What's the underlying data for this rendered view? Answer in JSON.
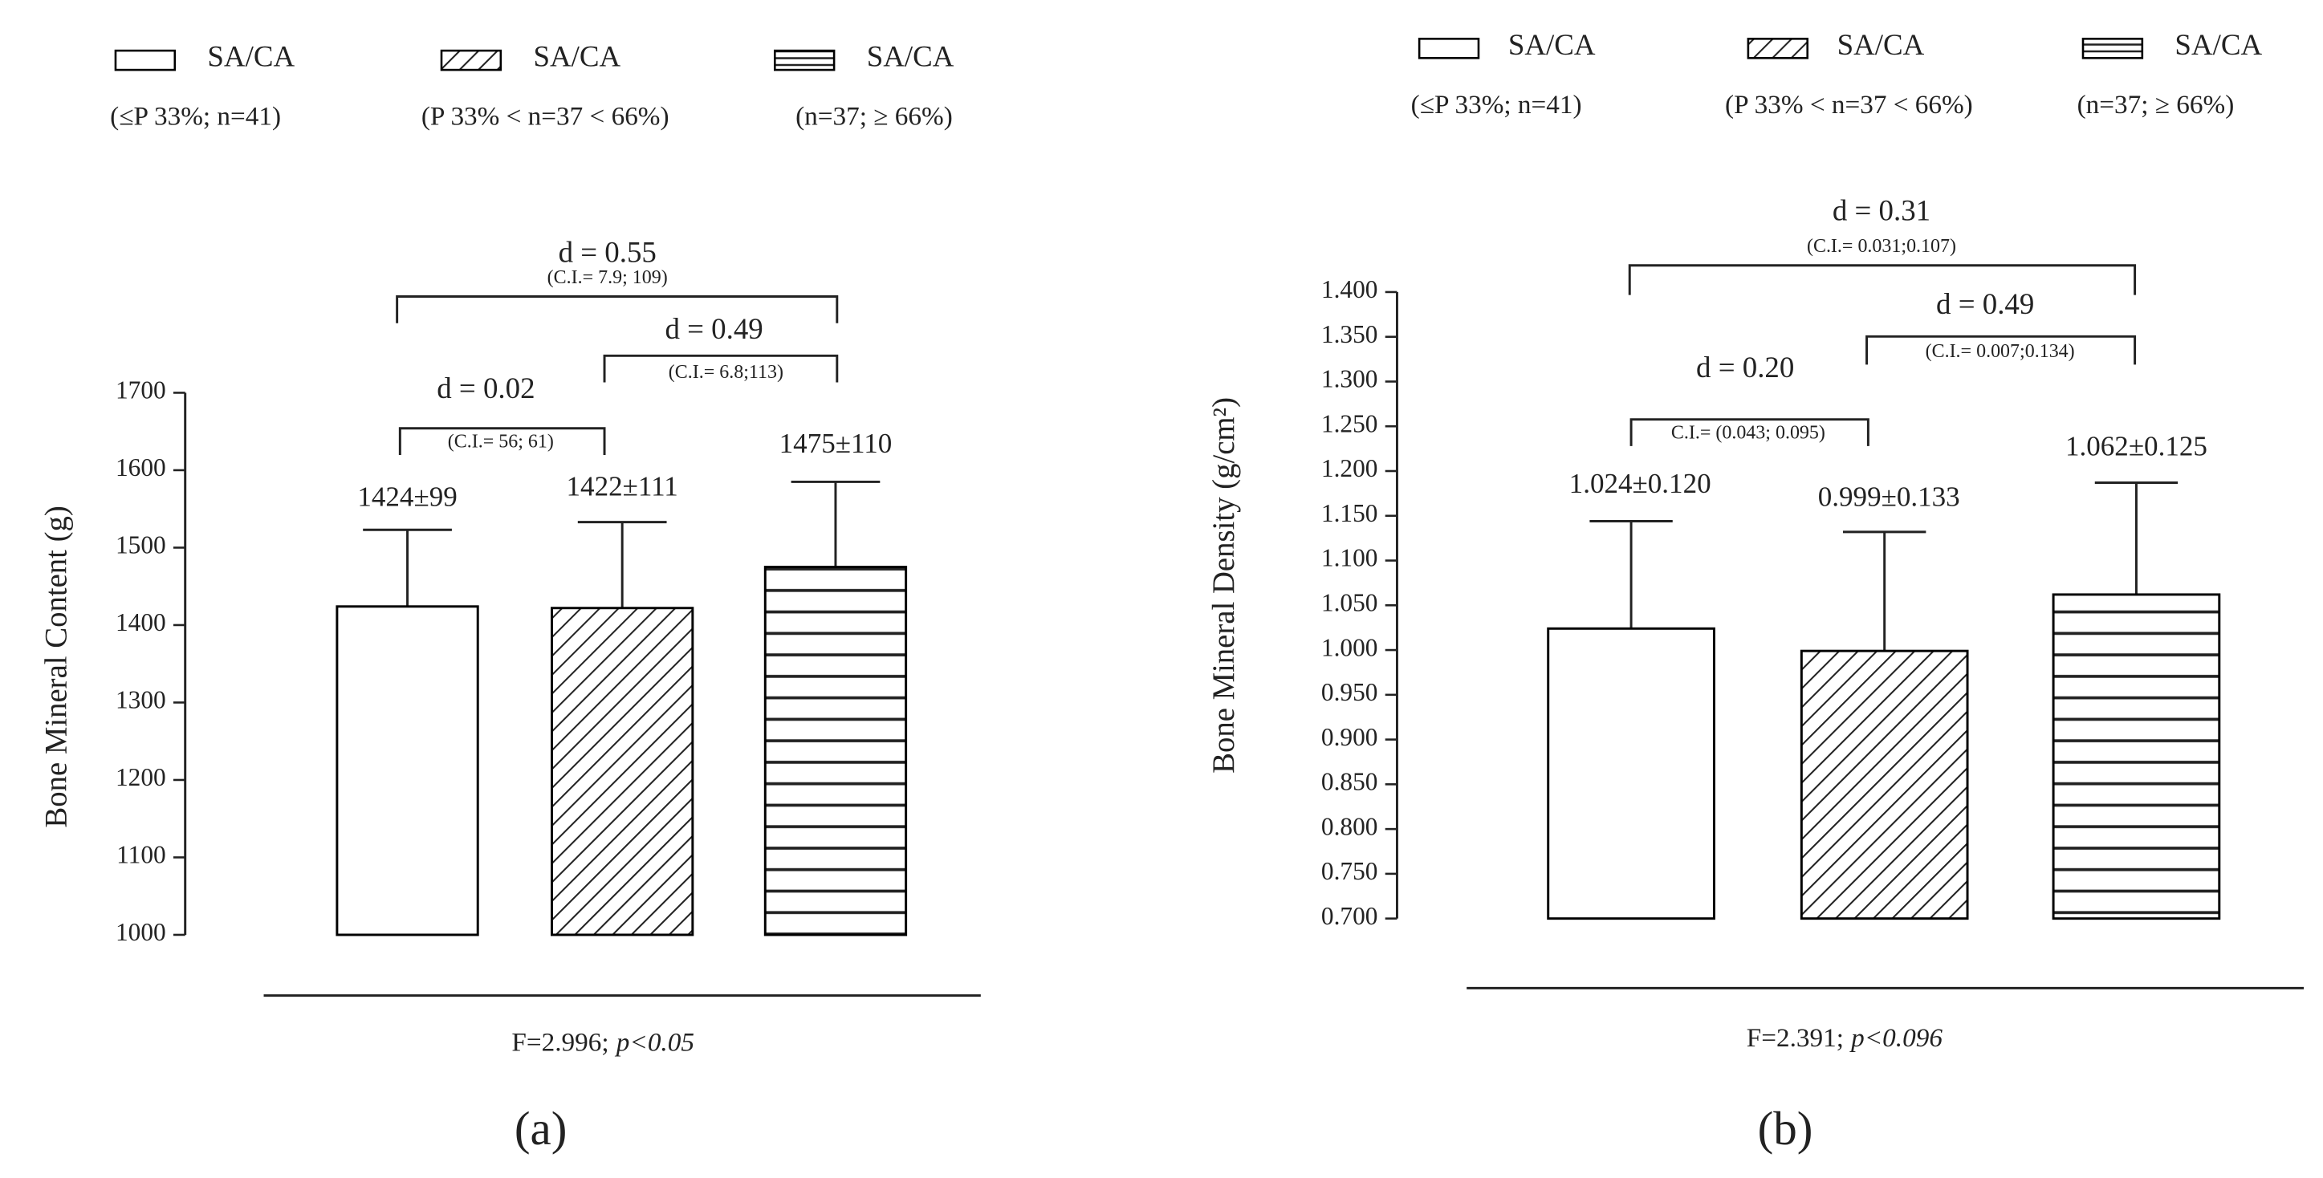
{
  "chart_data": [
    {
      "type": "bar",
      "ylabel": "Bone Mineral Content (g)",
      "ylim": [
        1000,
        1700
      ],
      "yticks": [
        1000,
        1100,
        1200,
        1300,
        1400,
        1500,
        1600,
        1700
      ],
      "color": "#000000",
      "series": [
        {
          "name": "SA/CA",
          "note": "(≤P 33%; n=41)",
          "pattern": "none",
          "values": [
            1424
          ],
          "errors": [
            99
          ],
          "value_labels": [
            "1424±99"
          ]
        },
        {
          "name": "SA/CA",
          "note": "(P 33% < n=37 < 66%)",
          "pattern": "diagonal",
          "values": [
            1422
          ],
          "errors": [
            111
          ],
          "value_labels": [
            "1422±111"
          ]
        },
        {
          "name": "SA/CA",
          "note": "(n=37; ≥ 66%)",
          "pattern": "horizontal",
          "values": [
            1475
          ],
          "errors": [
            110
          ],
          "value_labels": [
            "1475±110"
          ]
        }
      ],
      "annotations": [
        {
          "text": "d = 0.55",
          "ci": "(C.I.= 7.9; 109)"
        },
        {
          "text": "d = 0.49",
          "ci": "(C.I.= 6.8;113)"
        },
        {
          "text": "d = 0.02",
          "ci": "(C.I.= 56; 61)"
        }
      ],
      "footnote": "F=2.996;",
      "p_value": "p<0.05",
      "panel_label": "(a)"
    },
    {
      "type": "bar",
      "ylabel": "Bone Mineral Density (g/cm²)",
      "ylim": [
        0.7,
        1.4
      ],
      "yticks": [
        {
          "value": 0.7,
          "label": "0.700"
        },
        {
          "value": 0.75,
          "label": "0.750"
        },
        {
          "value": 0.8,
          "label": "0.800"
        },
        {
          "value": 0.85,
          "label": "0.850"
        },
        {
          "value": 0.9,
          "label": "0.900"
        },
        {
          "value": 0.95,
          "label": "0.950"
        },
        {
          "value": 1.0,
          "label": "1.000"
        },
        {
          "value": 1.05,
          "label": "1.050"
        },
        {
          "value": 1.1,
          "label": "1.100"
        },
        {
          "value": 1.15,
          "label": "1.150"
        },
        {
          "value": 1.2,
          "label": "1.200"
        },
        {
          "value": 1.25,
          "label": "1.250"
        },
        {
          "value": 1.3,
          "label": "1.300"
        },
        {
          "value": 1.35,
          "label": "1.350"
        },
        {
          "value": 1.4,
          "label": "1.400"
        }
      ],
      "color": "#000000",
      "series": [
        {
          "name": "SA/CA",
          "note": "(≤P 33%; n=41)",
          "pattern": "none",
          "values": [
            1.024
          ],
          "errors": [
            0.12
          ],
          "value_labels": [
            "1.024±0.120"
          ]
        },
        {
          "name": "SA/CA",
          "note": "(P 33% < n=37 < 66%)",
          "pattern": "diagonal",
          "values": [
            0.999
          ],
          "errors": [
            0.133
          ],
          "value_labels": [
            "0.999±0.133"
          ]
        },
        {
          "name": "SA/CA",
          "note": "(n=37; ≥ 66%)",
          "pattern": "horizontal",
          "values": [
            1.062
          ],
          "errors": [
            0.125
          ],
          "value_labels": [
            "1.062±0.125"
          ]
        }
      ],
      "annotations": [
        {
          "text": "d = 0.31",
          "ci": "(C.I.= 0.031;0.107)"
        },
        {
          "text": "d = 0.49",
          "ci": "(C.I.= 0.007;0.134)"
        },
        {
          "text": "d = 0.20",
          "ci": "C.I.= (0.043; 0.095)"
        }
      ],
      "footnote": "F=2.391;",
      "p_value": "p<0.096",
      "panel_label": "(b)"
    }
  ]
}
